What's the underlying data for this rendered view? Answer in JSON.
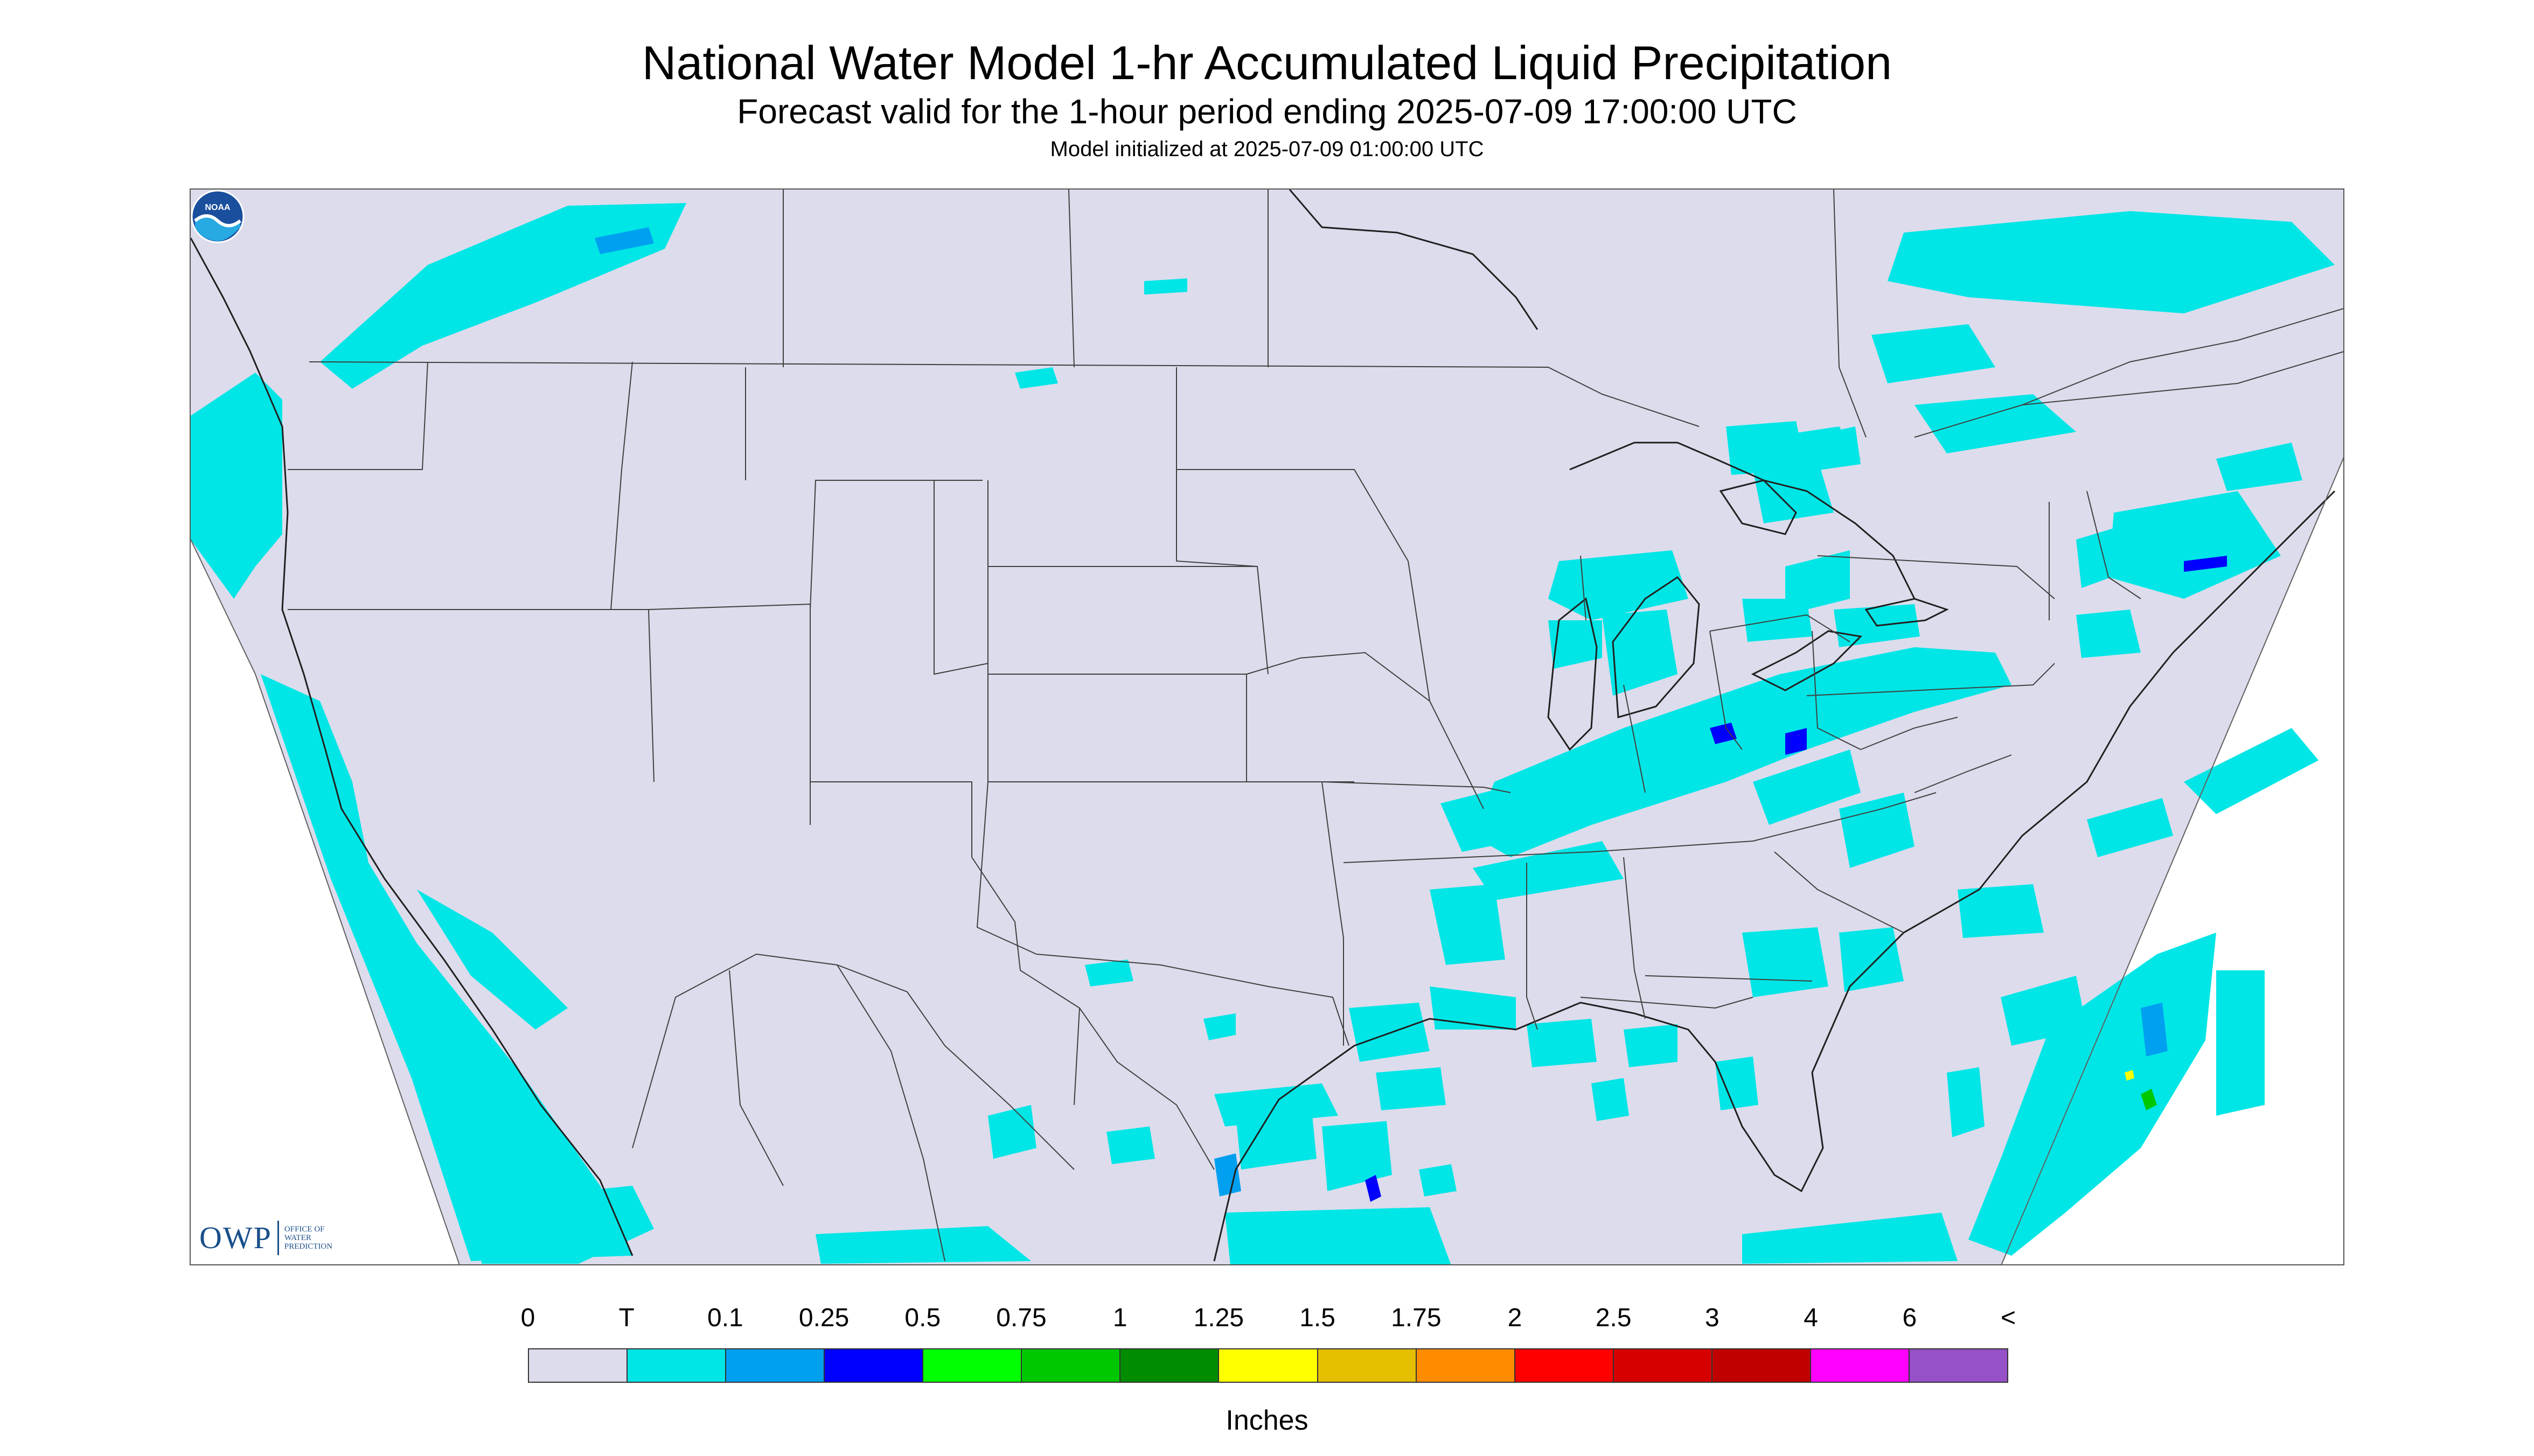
{
  "header": {
    "title": "National Water Model 1-hr Accumulated Liquid Precipitation",
    "subtitle": "Forecast valid for the 1-hour period ending 2025-07-09 17:00:00 UTC",
    "init_line": "Model initialized at 2025-07-09 01:00:00 UTC"
  },
  "map": {
    "region": "Continental United States",
    "background_color": "#dcdcec",
    "boundary_color": "#404040",
    "dominant_precip_color": "#00e6e6",
    "logos": {
      "owp": {
        "name": "owp-logo",
        "text": "OWP",
        "subtext": [
          "OFFICE OF",
          "WATER",
          "PREDICTION"
        ]
      },
      "noaa": {
        "name": "noaa-logo",
        "text": "NOAA"
      }
    }
  },
  "legend": {
    "labels": [
      "0",
      "T",
      "0.1",
      "0.25",
      "0.5",
      "0.75",
      "1",
      "1.25",
      "1.5",
      "1.75",
      "2",
      "2.5",
      "3",
      "4",
      "6",
      "<"
    ],
    "colors": [
      "#dcdcec",
      "#00e6e6",
      "#00a0f0",
      "#0000ff",
      "#00ff00",
      "#00c800",
      "#008c00",
      "#ffff00",
      "#e6be00",
      "#ff8c00",
      "#ff0000",
      "#d70000",
      "#c00000",
      "#ff00ff",
      "#9650c8"
    ],
    "units": "Inches"
  }
}
